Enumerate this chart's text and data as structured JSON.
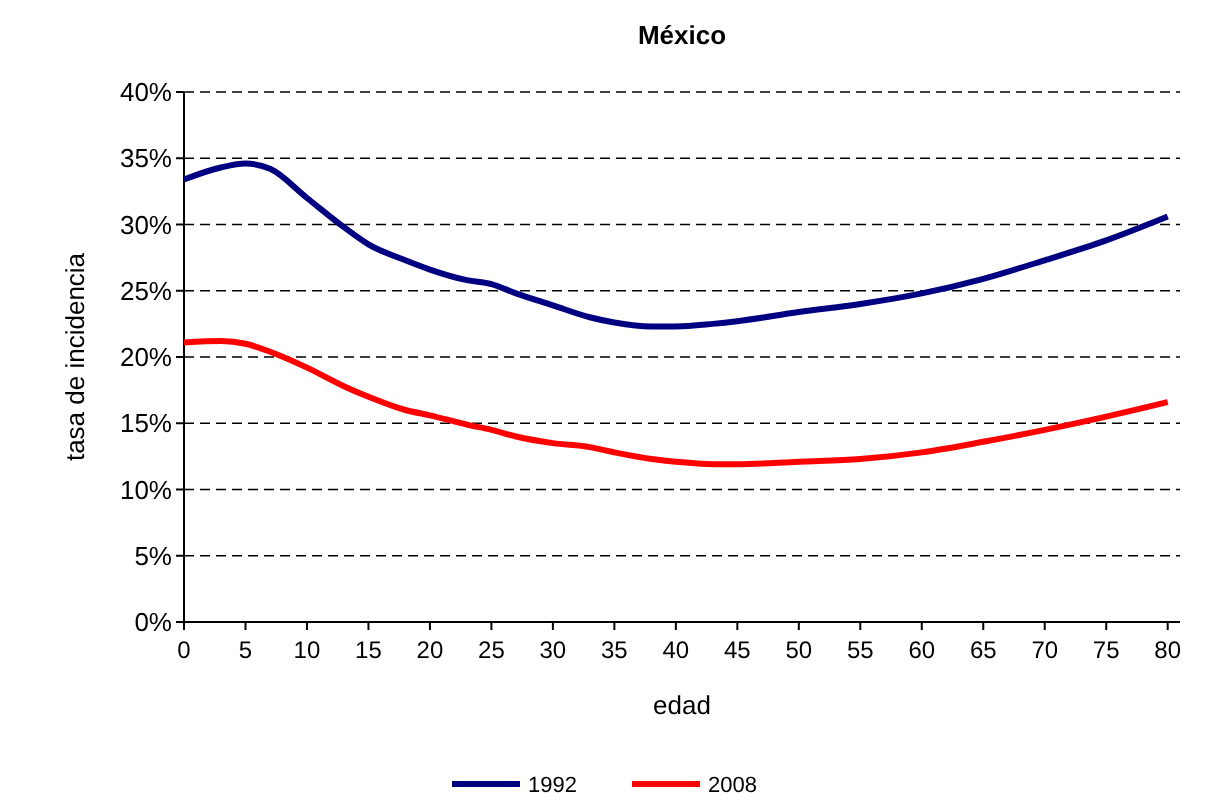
{
  "chart_data": {
    "type": "line",
    "title": "México",
    "xlabel": "edad",
    "ylabel": "tasa de incidencia",
    "x": [
      0,
      3,
      5,
      7,
      10,
      13,
      15,
      18,
      20,
      23,
      25,
      27,
      30,
      33,
      35,
      38,
      40,
      43,
      45,
      50,
      55,
      60,
      65,
      70,
      75,
      80
    ],
    "series": [
      {
        "name": "1992",
        "color": "#000080",
        "values": [
          33.4,
          34.3,
          34.6,
          34.2,
          32.0,
          29.8,
          28.5,
          27.3,
          26.6,
          25.8,
          25.5,
          24.8,
          23.9,
          23.0,
          22.6,
          22.3,
          22.3,
          22.5,
          22.7,
          23.4,
          24.0,
          24.8,
          25.9,
          27.3,
          28.8,
          30.6
        ]
      },
      {
        "name": "2008",
        "color": "#ff0000",
        "values": [
          21.1,
          21.2,
          21.0,
          20.4,
          19.2,
          17.8,
          17.0,
          16.0,
          15.6,
          14.9,
          14.5,
          14.0,
          13.5,
          13.2,
          12.8,
          12.3,
          12.1,
          11.9,
          11.9,
          12.1,
          12.3,
          12.8,
          13.6,
          14.5,
          15.5,
          16.6
        ]
      }
    ],
    "xlim": [
      0,
      81
    ],
    "xticks": [
      0,
      5,
      10,
      15,
      20,
      25,
      30,
      35,
      40,
      45,
      50,
      55,
      60,
      65,
      70,
      75,
      80
    ],
    "ylim": [
      0,
      40
    ],
    "yticks": [
      {
        "value": 0,
        "label": "0%"
      },
      {
        "value": 5,
        "label": "5%"
      },
      {
        "value": 10,
        "label": "10%"
      },
      {
        "value": 15,
        "label": "15%"
      },
      {
        "value": 20,
        "label": "20%"
      },
      {
        "value": 25,
        "label": "25%"
      },
      {
        "value": 30,
        "label": "30%"
      },
      {
        "value": 35,
        "label": "35%"
      },
      {
        "value": 40,
        "label": "40%"
      }
    ],
    "grid": "y",
    "legend": "bottom",
    "line_style": "solid",
    "marker": "none"
  }
}
